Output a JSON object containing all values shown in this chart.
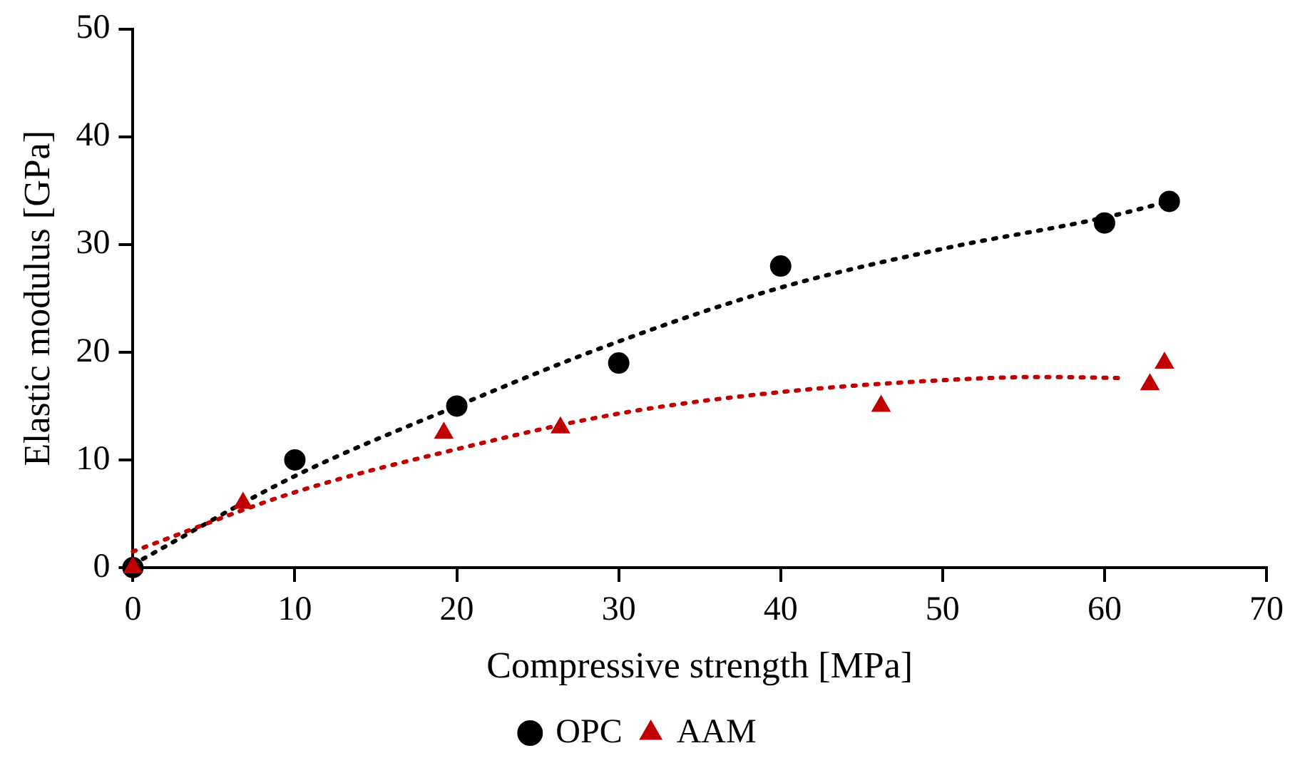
{
  "chart_data": {
    "type": "scatter",
    "xlabel": "Compressive strength [MPa]",
    "ylabel": "Elastic modulus [GPa]",
    "xlim": [
      0,
      70
    ],
    "xticks": [
      0,
      10,
      20,
      30,
      40,
      50,
      60,
      70
    ],
    "ylim": [
      0,
      50
    ],
    "yticks": [
      0,
      10,
      20,
      30,
      40,
      50
    ],
    "grid": false,
    "legend": "bottom",
    "series": [
      {
        "name": "OPC",
        "color": "#000000",
        "marker": "circle",
        "x": [
          0,
          10,
          20,
          30,
          40,
          60,
          64
        ],
        "values": [
          0,
          10,
          15,
          19,
          28,
          32,
          34
        ]
      },
      {
        "name": "AAM",
        "color": "#c00000",
        "marker": "triangle",
        "x": [
          0,
          6.8,
          19.2,
          26.4,
          46.2,
          62.8,
          63.7
        ],
        "values": [
          0,
          6,
          12.5,
          13,
          15,
          17,
          19
        ]
      },
      {
        "type": "line",
        "color": "#000000",
        "line_style": "dotted",
        "marker": "none",
        "x": [
          0,
          10,
          20,
          30,
          40,
          50,
          60,
          64
        ],
        "values": [
          0.3,
          8.5,
          15,
          21,
          26,
          29.6,
          32.5,
          34
        ]
      },
      {
        "type": "line",
        "color": "#c00000",
        "line_style": "dotted",
        "marker": "none",
        "x": [
          0,
          10,
          20,
          30,
          40,
          50,
          56,
          61
        ],
        "values": [
          1.5,
          7,
          11,
          14.3,
          16.3,
          17.4,
          17.7,
          17.6
        ]
      }
    ]
  }
}
